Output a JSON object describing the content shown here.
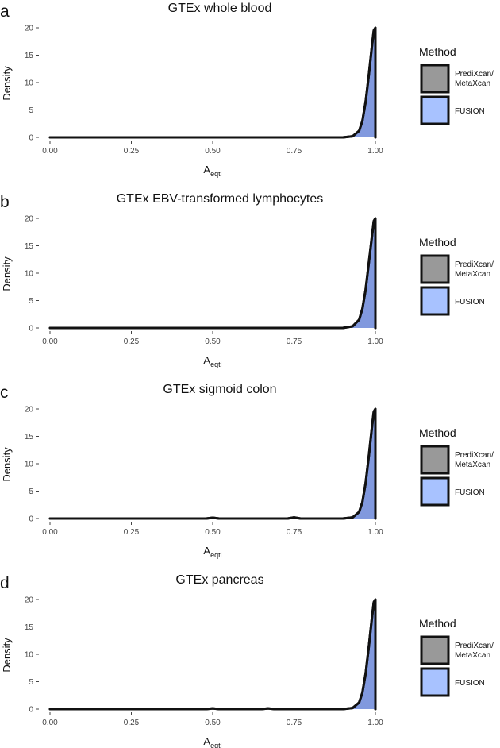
{
  "colors": {
    "prediXcan": "#999999",
    "fusion": "#a8c2ff",
    "overlap": "#6c83cc",
    "line": "#111111",
    "tick": "#444444"
  },
  "legend": {
    "title": "Method",
    "items": [
      {
        "label_lines": [
          "PrediXcan/",
          "MetaXcan"
        ],
        "color_key": "prediXcan",
        "name": "legend-key-predixcan"
      },
      {
        "label_lines": [
          "FUSION"
        ],
        "color_key": "fusion",
        "name": "legend-key-fusion"
      }
    ]
  },
  "chart_data": [
    {
      "letter": "a",
      "title": "GTEx whole blood",
      "type": "area",
      "xlabel": "A",
      "xlabel_sub": "eqtl",
      "ylabel": "Density",
      "xlim": [
        0,
        1
      ],
      "ylim": [
        0,
        20
      ],
      "xticks": [
        "0.00",
        "0.25",
        "0.50",
        "0.75",
        "1.00"
      ],
      "yticks": [
        "0",
        "5",
        "10",
        "15",
        "20"
      ],
      "series": [
        {
          "name": "PrediXcan/MetaXcan",
          "x": [
            0,
            0.5,
            0.9,
            0.93,
            0.95,
            0.96,
            0.97,
            0.98,
            0.99,
            0.995,
            1.0
          ],
          "values": [
            0,
            0,
            0,
            0.2,
            1.2,
            3.0,
            6.5,
            11.5,
            17.0,
            19.5,
            20.0
          ]
        },
        {
          "name": "FUSION",
          "x": [
            0,
            0.5,
            0.9,
            0.93,
            0.95,
            0.96,
            0.97,
            0.98,
            0.99,
            0.995,
            1.0
          ],
          "values": [
            0,
            0,
            0,
            0.2,
            1.2,
            3.0,
            6.5,
            11.5,
            17.0,
            19.5,
            20.0
          ]
        }
      ]
    },
    {
      "letter": "b",
      "title": "GTEx EBV-transformed lymphocytes",
      "type": "area",
      "xlabel": "A",
      "xlabel_sub": "eqtl",
      "ylabel": "Density",
      "xlim": [
        0,
        1
      ],
      "ylim": [
        0,
        20
      ],
      "xticks": [
        "0.00",
        "0.25",
        "0.50",
        "0.75",
        "1.00"
      ],
      "yticks": [
        "0",
        "5",
        "10",
        "15",
        "20"
      ],
      "series": [
        {
          "name": "PrediXcan/MetaXcan",
          "x": [
            0,
            0.5,
            0.9,
            0.93,
            0.95,
            0.96,
            0.97,
            0.98,
            0.99,
            0.995,
            1.0
          ],
          "values": [
            0,
            0,
            0,
            0.3,
            1.5,
            3.5,
            7.0,
            12.0,
            17.0,
            19.5,
            20.0
          ]
        },
        {
          "name": "FUSION",
          "x": [
            0,
            0.5,
            0.9,
            0.93,
            0.95,
            0.96,
            0.97,
            0.98,
            0.99,
            0.995,
            1.0
          ],
          "values": [
            0,
            0,
            0,
            0.3,
            1.5,
            3.5,
            7.0,
            12.0,
            17.0,
            19.5,
            20.0
          ]
        }
      ]
    },
    {
      "letter": "c",
      "title": "GTEx sigmoid colon",
      "type": "area",
      "xlabel": "A",
      "xlabel_sub": "eqtl",
      "ylabel": "Density",
      "xlim": [
        0,
        1
      ],
      "ylim": [
        0,
        20
      ],
      "xticks": [
        "0.00",
        "0.25",
        "0.50",
        "0.75",
        "1.00"
      ],
      "yticks": [
        "0",
        "5",
        "10",
        "15",
        "20"
      ],
      "series": [
        {
          "name": "PrediXcan/MetaXcan",
          "x": [
            0,
            0.48,
            0.5,
            0.52,
            0.73,
            0.75,
            0.77,
            0.9,
            0.93,
            0.95,
            0.96,
            0.97,
            0.98,
            0.99,
            0.995,
            1.0
          ],
          "values": [
            0,
            0,
            0.15,
            0,
            0,
            0.2,
            0,
            0,
            0.2,
            1.2,
            3.0,
            6.5,
            11.5,
            17.0,
            19.5,
            20.0
          ]
        },
        {
          "name": "FUSION",
          "x": [
            0,
            0.48,
            0.5,
            0.52,
            0.73,
            0.75,
            0.77,
            0.9,
            0.93,
            0.95,
            0.96,
            0.97,
            0.98,
            0.99,
            0.995,
            1.0
          ],
          "values": [
            0,
            0,
            0.15,
            0,
            0,
            0.2,
            0,
            0,
            0.2,
            1.2,
            3.0,
            6.5,
            11.5,
            17.0,
            19.5,
            20.0
          ]
        }
      ]
    },
    {
      "letter": "d",
      "title": "GTEx pancreas",
      "type": "area",
      "xlabel": "A",
      "xlabel_sub": "eqtl",
      "ylabel": "Density",
      "xlim": [
        0,
        1
      ],
      "ylim": [
        0,
        20
      ],
      "xticks": [
        "0.00",
        "0.25",
        "0.50",
        "0.75",
        "1.00"
      ],
      "yticks": [
        "0",
        "5",
        "10",
        "15",
        "20"
      ],
      "series": [
        {
          "name": "PrediXcan/MetaXcan",
          "x": [
            0,
            0.48,
            0.5,
            0.52,
            0.65,
            0.67,
            0.69,
            0.9,
            0.93,
            0.95,
            0.96,
            0.97,
            0.98,
            0.99,
            0.995,
            1.0
          ],
          "values": [
            0,
            0,
            0.12,
            0,
            0,
            0.12,
            0,
            0,
            0.2,
            1.2,
            3.0,
            6.5,
            11.5,
            17.0,
            19.5,
            20.0
          ]
        },
        {
          "name": "FUSION",
          "x": [
            0,
            0.48,
            0.5,
            0.52,
            0.65,
            0.67,
            0.69,
            0.9,
            0.93,
            0.95,
            0.96,
            0.97,
            0.98,
            0.99,
            0.995,
            1.0
          ],
          "values": [
            0,
            0,
            0.12,
            0,
            0,
            0.12,
            0,
            0,
            0.2,
            1.2,
            3.0,
            6.5,
            11.5,
            17.0,
            19.5,
            20.0
          ]
        }
      ]
    }
  ]
}
